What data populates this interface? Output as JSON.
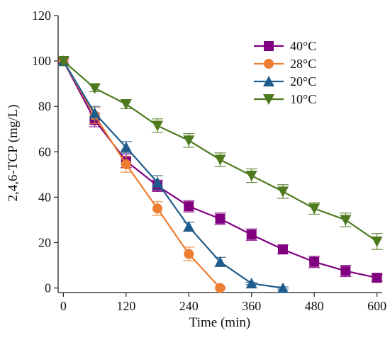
{
  "chart_data": {
    "type": "line",
    "title": "",
    "xlabel": "Time (min)",
    "ylabel": "2,4,6-TCP (mg/L)",
    "xlim": [
      -10,
      610
    ],
    "ylim": [
      -2,
      120
    ],
    "xticks": [
      0,
      120,
      240,
      360,
      480,
      600
    ],
    "yticks": [
      0,
      20,
      40,
      60,
      80,
      100,
      120
    ],
    "grid": false,
    "legend_position": "top-right",
    "series": [
      {
        "name": "40°C",
        "color": "#800080",
        "marker": "square",
        "x": [
          0,
          60,
          120,
          180,
          240,
          300,
          360,
          420,
          480,
          540,
          600
        ],
        "y": [
          100,
          74,
          56,
          45,
          36,
          30.5,
          23.5,
          17,
          11.5,
          7.5,
          4.5
        ],
        "err": [
          1.5,
          3,
          3,
          2.5,
          2.5,
          2.5,
          2.5,
          2,
          2.5,
          2.5,
          1.5
        ]
      },
      {
        "name": "28°C",
        "color": "#ED7D31",
        "marker": "circle",
        "x": [
          0,
          60,
          120,
          180,
          240,
          300
        ],
        "y": [
          100,
          76,
          54.5,
          35,
          15,
          0
        ],
        "err": [
          1.5,
          3.5,
          3.5,
          3,
          3,
          0.5
        ]
      },
      {
        "name": "20°C",
        "color": "#1F5C8B",
        "marker": "triangle-up",
        "x": [
          0,
          60,
          120,
          180,
          240,
          300,
          360,
          420
        ],
        "y": [
          100,
          77,
          62,
          46.5,
          27,
          11.5,
          2,
          0
        ],
        "err": [
          1.5,
          3,
          2.5,
          3,
          2,
          2,
          0.5,
          0.5
        ]
      },
      {
        "name": "10°C",
        "color": "#4E7A1E",
        "marker": "triangle-down",
        "x": [
          0,
          60,
          120,
          180,
          240,
          300,
          360,
          420,
          480,
          540,
          600
        ],
        "y": [
          100,
          88,
          81,
          71.5,
          65,
          56.5,
          49.5,
          42.5,
          35,
          30,
          20.5
        ],
        "err": [
          1.5,
          1.5,
          2,
          3,
          3,
          3,
          3,
          3,
          2.5,
          3,
          3.5
        ]
      }
    ]
  }
}
